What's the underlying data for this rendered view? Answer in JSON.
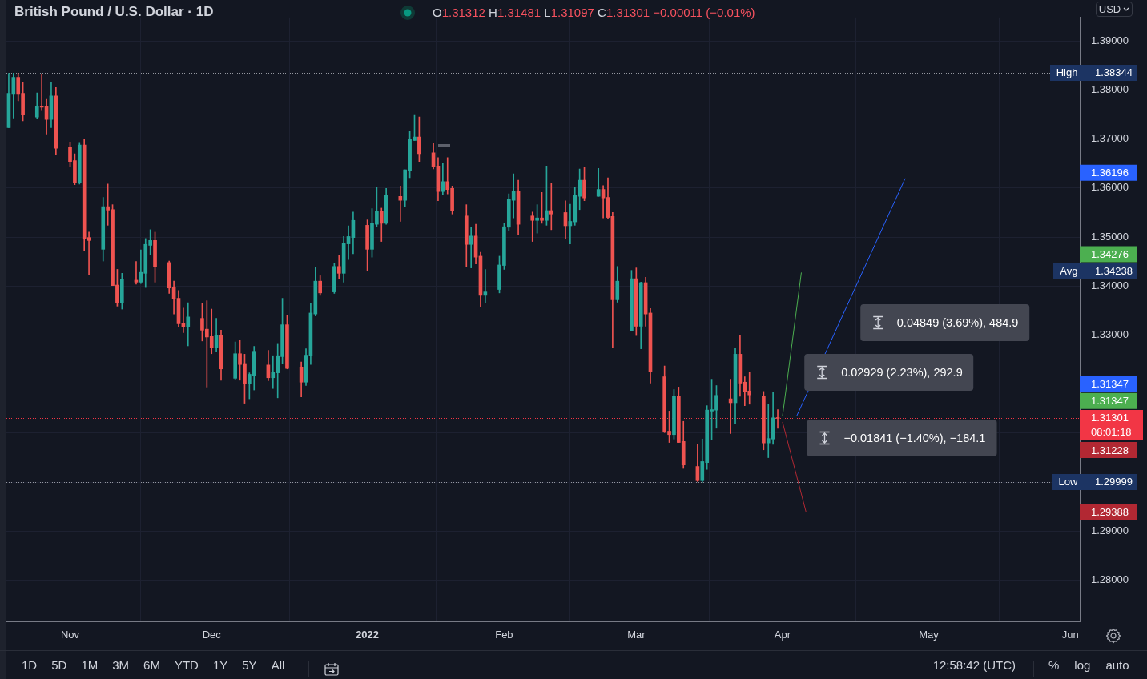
{
  "chart_data": {
    "type": "candlestick",
    "title": "British Pound / U.S. Dollar · 1D",
    "subtitle": "O1.31312 H1.31481 L1.31097 C1.31301 −0.00011 (−0.01%)",
    "x": [
      "2021-10-19",
      "2021-10-20",
      "2021-10-21",
      "2021-10-22",
      "2021-10-25",
      "2021-10-26",
      "2021-10-27",
      "2021-10-28",
      "2021-10-29",
      "2021-11-01",
      "2021-11-02",
      "2021-11-03",
      "2021-11-04",
      "2021-11-05",
      "2021-11-08",
      "2021-11-09",
      "2021-11-10",
      "2021-11-11",
      "2021-11-12",
      "2021-11-15",
      "2021-11-16",
      "2021-11-17",
      "2021-11-18",
      "2021-11-19",
      "2021-11-22",
      "2021-11-23",
      "2021-11-24",
      "2021-11-25",
      "2021-11-26",
      "2021-11-29",
      "2021-11-30",
      "2021-12-01",
      "2021-12-02",
      "2021-12-03",
      "2021-12-06",
      "2021-12-07",
      "2021-12-08",
      "2021-12-09",
      "2021-12-10",
      "2021-12-13",
      "2021-12-14",
      "2021-12-15",
      "2021-12-16",
      "2021-12-17",
      "2021-12-20",
      "2021-12-21",
      "2021-12-22",
      "2021-12-23",
      "2021-12-24",
      "2021-12-27",
      "2021-12-28",
      "2021-12-29",
      "2021-12-30",
      "2021-12-31",
      "2022-01-03",
      "2022-01-04",
      "2022-01-05",
      "2022-01-06",
      "2022-01-07",
      "2022-01-10",
      "2022-01-11",
      "2022-01-12",
      "2022-01-13",
      "2022-01-14",
      "2022-01-17",
      "2022-01-18",
      "2022-01-19",
      "2022-01-20",
      "2022-01-21",
      "2022-01-24",
      "2022-01-25",
      "2022-01-26",
      "2022-01-27",
      "2022-01-28",
      "2022-01-31",
      "2022-02-01",
      "2022-02-02",
      "2022-02-03",
      "2022-02-04",
      "2022-02-07",
      "2022-02-08",
      "2022-02-09",
      "2022-02-10",
      "2022-02-11",
      "2022-02-14",
      "2022-02-15",
      "2022-02-16",
      "2022-02-17",
      "2022-02-18",
      "2022-02-21",
      "2022-02-22",
      "2022-02-23",
      "2022-02-24",
      "2022-02-25",
      "2022-02-28",
      "2022-03-01",
      "2022-03-02",
      "2022-03-03",
      "2022-03-04",
      "2022-03-07",
      "2022-03-08",
      "2022-03-09",
      "2022-03-10",
      "2022-03-11",
      "2022-03-14",
      "2022-03-15",
      "2022-03-16",
      "2022-03-17",
      "2022-03-18",
      "2022-03-21",
      "2022-03-22",
      "2022-03-23",
      "2022-03-24",
      "2022-03-25",
      "2022-03-28",
      "2022-03-29",
      "2022-03-30",
      "2022-03-31"
    ],
    "ohlc": [
      [
        1.3723,
        1.3834,
        1.3723,
        1.3793
      ],
      [
        1.3791,
        1.38344,
        1.3743,
        1.3826
      ],
      [
        1.3826,
        1.3834,
        1.3778,
        1.3791
      ],
      [
        1.3793,
        1.3816,
        1.3737,
        1.375
      ],
      [
        1.3745,
        1.3794,
        1.3742,
        1.3766
      ],
      [
        1.3766,
        1.3831,
        1.3758,
        1.3765
      ],
      [
        1.3766,
        1.3781,
        1.371,
        1.374
      ],
      [
        1.374,
        1.3816,
        1.3723,
        1.3788
      ],
      [
        1.3788,
        1.3805,
        1.3669,
        1.3681
      ],
      [
        1.3683,
        1.3694,
        1.3643,
        1.3654
      ],
      [
        1.3656,
        1.367,
        1.3607,
        1.361
      ],
      [
        1.361,
        1.3693,
        1.3608,
        1.3688
      ],
      [
        1.3688,
        1.3699,
        1.3472,
        1.3497
      ],
      [
        1.3499,
        1.351,
        1.3424,
        1.3493
      ],
      [
        1.3475,
        1.3581,
        1.3451,
        1.3562
      ],
      [
        1.3562,
        1.3608,
        1.3524,
        1.3555
      ],
      [
        1.3556,
        1.3566,
        1.3401,
        1.3401
      ],
      [
        1.3402,
        1.3434,
        1.3359,
        1.3366
      ],
      [
        1.3366,
        1.3426,
        1.3353,
        1.3413
      ],
      [
        1.3412,
        1.345,
        1.3404,
        1.3408
      ],
      [
        1.3408,
        1.3474,
        1.3405,
        1.3428
      ],
      [
        1.3426,
        1.3497,
        1.3397,
        1.3485
      ],
      [
        1.3483,
        1.3515,
        1.3464,
        1.3493
      ],
      [
        1.3493,
        1.351,
        1.3408,
        1.344
      ],
      [
        1.3448,
        1.3451,
        1.3385,
        1.3396
      ],
      [
        1.3397,
        1.341,
        1.3343,
        1.3374
      ],
      [
        1.3375,
        1.3391,
        1.3316,
        1.3323
      ],
      [
        1.3324,
        1.3355,
        1.3305,
        1.3316
      ],
      [
        1.3316,
        1.3366,
        1.3278,
        1.3337
      ],
      [
        1.3334,
        1.3364,
        1.3288,
        1.331
      ],
      [
        1.3312,
        1.337,
        1.3194,
        1.3296
      ],
      [
        1.3297,
        1.3353,
        1.3262,
        1.3274
      ],
      [
        1.3274,
        1.3334,
        1.3267,
        1.3299
      ],
      [
        1.3299,
        1.331,
        1.3208,
        1.3231
      ],
      [
        1.3212,
        1.3286,
        1.321,
        1.3262
      ],
      [
        1.3262,
        1.3289,
        1.3208,
        1.324
      ],
      [
        1.3242,
        1.3261,
        1.3161,
        1.3201
      ],
      [
        1.3201,
        1.3223,
        1.317,
        1.322
      ],
      [
        1.3218,
        1.3277,
        1.3188,
        1.3267
      ],
      [
        1.3239,
        1.3269,
        1.3207,
        1.3213
      ],
      [
        1.3213,
        1.3258,
        1.3191,
        1.3224
      ],
      [
        1.3223,
        1.3283,
        1.3172,
        1.3258
      ],
      [
        1.3256,
        1.3375,
        1.3242,
        1.3321
      ],
      [
        1.3321,
        1.334,
        1.3231,
        1.3232
      ],
      [
        1.3235,
        1.3245,
        1.3174,
        1.3204
      ],
      [
        1.3204,
        1.3272,
        1.3197,
        1.3259
      ],
      [
        1.3258,
        1.3364,
        1.324,
        1.3345
      ],
      [
        1.3343,
        1.3439,
        1.3339,
        1.341
      ],
      [
        1.341,
        1.3421,
        1.3381,
        1.3386
      ],
      [
        1.3388,
        1.3447,
        1.3385,
        1.344
      ],
      [
        1.344,
        1.3462,
        1.3415,
        1.3426
      ],
      [
        1.3426,
        1.3501,
        1.3408,
        1.3488
      ],
      [
        1.3486,
        1.3523,
        1.3454,
        1.3501
      ],
      [
        1.3499,
        1.3551,
        1.3466,
        1.3534
      ],
      [
        1.3524,
        1.3535,
        1.3431,
        1.3475
      ],
      [
        1.3475,
        1.3558,
        1.3459,
        1.3528
      ],
      [
        1.3526,
        1.3601,
        1.3521,
        1.3553
      ],
      [
        1.3553,
        1.3559,
        1.3491,
        1.3528
      ],
      [
        1.3528,
        1.3599,
        1.3526,
        1.3586
      ],
      [
        1.3583,
        1.3604,
        1.3532,
        1.3575
      ],
      [
        1.3575,
        1.3637,
        1.3562,
        1.3637
      ],
      [
        1.3635,
        1.3716,
        1.3621,
        1.3699
      ],
      [
        1.3697,
        1.375,
        1.3697,
        1.3704
      ],
      [
        1.3704,
        1.3745,
        1.3654,
        1.367
      ],
      [
        1.3672,
        1.3691,
        1.3639,
        1.3643
      ],
      [
        1.3645,
        1.3662,
        1.3574,
        1.3593
      ],
      [
        1.3593,
        1.365,
        1.3586,
        1.3613
      ],
      [
        1.3613,
        1.3662,
        1.3588,
        1.3597
      ],
      [
        1.3599,
        1.3604,
        1.3547,
        1.3553
      ],
      [
        1.3543,
        1.3566,
        1.344,
        1.3485
      ],
      [
        1.3485,
        1.352,
        1.3437,
        1.3502
      ],
      [
        1.3502,
        1.3526,
        1.3445,
        1.3459
      ],
      [
        1.3461,
        1.3469,
        1.3358,
        1.3381
      ],
      [
        1.3381,
        1.3434,
        1.3366,
        1.3388
      ],
      [
        1.3393,
        1.3461,
        1.3386,
        1.3443
      ],
      [
        1.3442,
        1.3529,
        1.3434,
        1.3521
      ],
      [
        1.352,
        1.3588,
        1.3513,
        1.3577
      ],
      [
        1.3575,
        1.3629,
        1.3539,
        1.3594
      ],
      [
        1.3594,
        1.3616,
        1.3505,
        1.3526
      ],
      [
        1.3543,
        1.3551,
        1.3491,
        1.3534
      ],
      [
        1.3534,
        1.3566,
        1.3508,
        1.3539
      ],
      [
        1.3539,
        1.3591,
        1.3528,
        1.3534
      ],
      [
        1.3534,
        1.3645,
        1.3524,
        1.3554
      ],
      [
        1.3554,
        1.361,
        1.3515,
        1.3547
      ],
      [
        1.355,
        1.3574,
        1.3496,
        1.3523
      ],
      [
        1.3523,
        1.3567,
        1.3486,
        1.3532
      ],
      [
        1.3531,
        1.3602,
        1.3524,
        1.3585
      ],
      [
        1.3583,
        1.3639,
        1.3556,
        1.3616
      ],
      [
        1.3616,
        1.3643,
        1.3574,
        1.358
      ],
      [
        1.3583,
        1.364,
        1.3583,
        1.3597
      ],
      [
        1.3597,
        1.3605,
        1.3539,
        1.358
      ],
      [
        1.3581,
        1.3621,
        1.3537,
        1.354
      ],
      [
        1.3542,
        1.355,
        1.3274,
        1.3372
      ],
      [
        1.3372,
        1.344,
        1.3367,
        1.341
      ],
      [
        1.3308,
        1.3432,
        1.3308,
        1.3415
      ],
      [
        1.3415,
        1.3437,
        1.3299,
        1.3318
      ],
      [
        1.3318,
        1.3408,
        1.3272,
        1.3407
      ],
      [
        1.3407,
        1.3418,
        1.3318,
        1.3343
      ],
      [
        1.3345,
        1.3354,
        1.3202,
        1.3226
      ],
      [
        1.3215,
        1.3237,
        1.3101,
        1.3102
      ],
      [
        1.3104,
        1.3145,
        1.3081,
        1.3097
      ],
      [
        1.3097,
        1.3189,
        1.3088,
        1.3175
      ],
      [
        1.3175,
        1.3194,
        1.3081,
        1.3081
      ],
      [
        1.3083,
        1.3124,
        1.3028,
        1.3035
      ],
      [
        1.3032,
        1.3078,
        1.3001,
        1.3003
      ],
      [
        1.3003,
        1.3088,
        1.29999,
        1.3042
      ],
      [
        1.304,
        1.3156,
        1.3026,
        1.3147
      ],
      [
        1.3145,
        1.321,
        1.3086,
        1.3148
      ],
      [
        1.3147,
        1.3197,
        1.311,
        1.3177
      ],
      [
        1.317,
        1.321,
        1.3099,
        1.3162
      ],
      [
        1.3162,
        1.3274,
        1.312,
        1.3261
      ],
      [
        1.3261,
        1.3299,
        1.3175,
        1.3202
      ],
      [
        1.3204,
        1.3215,
        1.3156,
        1.3185
      ],
      [
        1.3186,
        1.3224,
        1.3159,
        1.3178
      ],
      [
        1.3175,
        1.3185,
        1.3066,
        1.308
      ],
      [
        1.308,
        1.3159,
        1.305,
        1.3089
      ],
      [
        1.3088,
        1.3183,
        1.3077,
        1.31312
      ],
      [
        1.31312,
        1.31481,
        1.31097,
        1.31301
      ]
    ],
    "colors": [
      "#26a69a",
      "#26a69a",
      "#ef5350",
      "#ef5350",
      "#26a69a",
      "#ef5350",
      "#ef5350",
      "#26a69a",
      "#ef5350",
      "#ef5350",
      "#ef5350",
      "#26a69a",
      "#ef5350",
      "#ef5350",
      "#26a69a",
      "#ef5350",
      "#ef5350",
      "#ef5350",
      "#26a69a",
      "#ef5350",
      "#26a69a",
      "#26a69a",
      "#26a69a",
      "#ef5350",
      "#ef5350",
      "#ef5350",
      "#ef5350",
      "#ef5350",
      "#26a69a",
      "#ef5350",
      "#ef5350",
      "#ef5350",
      "#26a69a",
      "#ef5350",
      "#26a69a",
      "#ef5350",
      "#ef5350",
      "#26a69a",
      "#26a69a",
      "#ef5350",
      "#26a69a",
      "#26a69a",
      "#26a69a",
      "#ef5350",
      "#ef5350",
      "#26a69a",
      "#26a69a",
      "#26a69a",
      "#ef5350",
      "#26a69a",
      "#ef5350",
      "#26a69a",
      "#26a69a",
      "#26a69a",
      "#ef5350",
      "#26a69a",
      "#26a69a",
      "#ef5350",
      "#26a69a",
      "#ef5350",
      "#26a69a",
      "#26a69a",
      "#26a69a",
      "#ef5350",
      "#ef5350",
      "#ef5350",
      "#26a69a",
      "#ef5350",
      "#ef5350",
      "#ef5350",
      "#26a69a",
      "#ef5350",
      "#ef5350",
      "#26a69a",
      "#26a69a",
      "#26a69a",
      "#26a69a",
      "#26a69a",
      "#ef5350",
      "#ef5350",
      "#26a69a",
      "#ef5350",
      "#26a69a",
      "#ef5350",
      "#ef5350",
      "#26a69a",
      "#26a69a",
      "#26a69a",
      "#ef5350",
      "#26a69a",
      "#ef5350",
      "#ef5350",
      "#ef5350",
      "#26a69a",
      "#26a69a",
      "#ef5350",
      "#26a69a",
      "#ef5350",
      "#ef5350",
      "#ef5350",
      "#ef5350",
      "#26a69a",
      "#ef5350",
      "#ef5350",
      "#ef5350",
      "#26a69a",
      "#26a69a",
      "#26a69a",
      "#26a69a",
      "#ef5350",
      "#26a69a",
      "#ef5350",
      "#ef5350",
      "#ef5350",
      "#ef5350",
      "#26a69a",
      "#26a69a",
      "#ef5350"
    ],
    "series": [
      {
        "type": "line",
        "color": "#4caf50",
        "x": [
          "2022-04-01",
          "2022-04-05"
        ],
        "values": [
          1.31347,
          1.34276
        ]
      },
      {
        "type": "line",
        "color": "#2962ff",
        "x": [
          "2022-04-04",
          "2022-04-27"
        ],
        "values": [
          1.31347,
          1.36196
        ]
      },
      {
        "type": "line",
        "color": "#b22833",
        "x": [
          "2022-04-01",
          "2022-04-06"
        ],
        "values": [
          1.31228,
          1.29388
        ]
      }
    ],
    "xlim": [
      "2021-10-18T12:00",
      "2022-06-03"
    ],
    "xticks": [
      {
        "value": "2021-11-01",
        "label": "Nov"
      },
      {
        "value": "2021-12-01",
        "label": "Dec"
      },
      {
        "value": "2022-01-03",
        "label": "2022"
      },
      {
        "value": "2022-02-01",
        "label": "Feb"
      },
      {
        "value": "2022-03-01",
        "label": "Mar"
      },
      {
        "value": "2022-04-01",
        "label": "Apr"
      },
      {
        "value": "2022-05-02",
        "label": "May"
      },
      {
        "value": "2022-06-01",
        "label": "Jun"
      }
    ],
    "ylim": [
      1.2716,
      1.3948
    ],
    "yticks": [
      {
        "value": 1.28,
        "label": "1.28000"
      },
      {
        "value": 1.29,
        "label": "1.29000"
      },
      {
        "value": 1.3,
        "label": null
      },
      {
        "value": 1.31,
        "label": null
      },
      {
        "value": 1.32,
        "label": null
      },
      {
        "value": 1.33,
        "label": "1.33000"
      },
      {
        "value": 1.34,
        "label": "1.34000"
      },
      {
        "value": 1.35,
        "label": "1.35000"
      },
      {
        "value": 1.36,
        "label": "1.36000"
      },
      {
        "value": 1.37,
        "label": "1.37000"
      },
      {
        "value": 1.38,
        "label": "1.38000"
      },
      {
        "value": 1.39,
        "label": "1.39000"
      }
    ],
    "grid": true,
    "ref_lines": [
      {
        "axis": "y",
        "value": 1.38344,
        "label": "High 1.38344",
        "line_style": "dotted"
      },
      {
        "axis": "y",
        "value": 1.34238,
        "label": "Avg 1.34238",
        "line_style": "dotted"
      },
      {
        "axis": "y",
        "value": 1.29999,
        "label": "Low 1.29999",
        "line_style": "dotted"
      },
      {
        "axis": "y",
        "value": 1.31301,
        "label": "1.31301 08:01:18",
        "color": "#f23645",
        "line_style": "dotted"
      }
    ],
    "annotations": [
      "0.02929 (2.23%), 292.9",
      "0.04849 (3.69%), 484.9",
      "−0.01841 (−1.40%), −184.1",
      "1.31347",
      "1.34276",
      "1.31347",
      "1.36196",
      "1.31228",
      "1.29388",
      "USD",
      "1D",
      "5D",
      "1M",
      "3M",
      "6M",
      "YTD",
      "1Y",
      "5Y",
      "All",
      "12:58:42 (UTC)",
      "%",
      "log",
      "auto"
    ]
  }
}
